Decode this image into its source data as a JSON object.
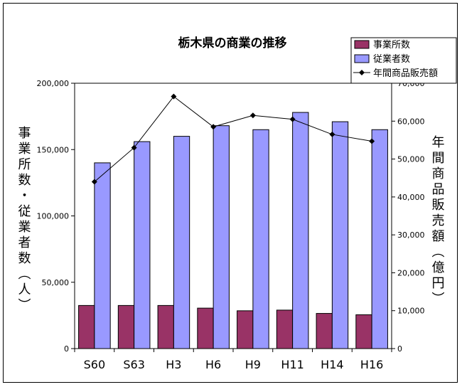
{
  "chart_data": {
    "type": "bar",
    "title": "栃木県の商業の推移",
    "categories": [
      "S60",
      "S63",
      "H3",
      "H6",
      "H9",
      "H11",
      "H14",
      "H16"
    ],
    "ylabel_left": "事業所数・従業者数（人）",
    "ylabel_right": "年間商品販売額（億円）",
    "ylim_left": [
      0,
      200000
    ],
    "ylim_right": [
      0,
      70000
    ],
    "yticks_left": [
      "0",
      "50,000",
      "100,000",
      "150,000",
      "200,000"
    ],
    "yticks_right": [
      "0",
      "10,000",
      "20,000",
      "30,000",
      "40,000",
      "50,000",
      "60,000",
      "70,000"
    ],
    "legend_position": "top-right",
    "grid": false,
    "series": [
      {
        "name": "事業所数",
        "type": "bar",
        "axis": "left",
        "color": "#993366",
        "values": [
          32500,
          32500,
          32500,
          30500,
          28500,
          29000,
          26500,
          25500
        ]
      },
      {
        "name": "従業者数",
        "type": "bar",
        "axis": "left",
        "color": "#9999ff",
        "values": [
          140000,
          156000,
          160000,
          168000,
          165000,
          178000,
          171000,
          165000
        ]
      },
      {
        "name": "年間商品販売額",
        "type": "line",
        "axis": "right",
        "color": "#000000",
        "marker": "diamond",
        "values": [
          44000,
          53000,
          66500,
          58500,
          61500,
          60500,
          56500,
          54700
        ]
      }
    ]
  }
}
